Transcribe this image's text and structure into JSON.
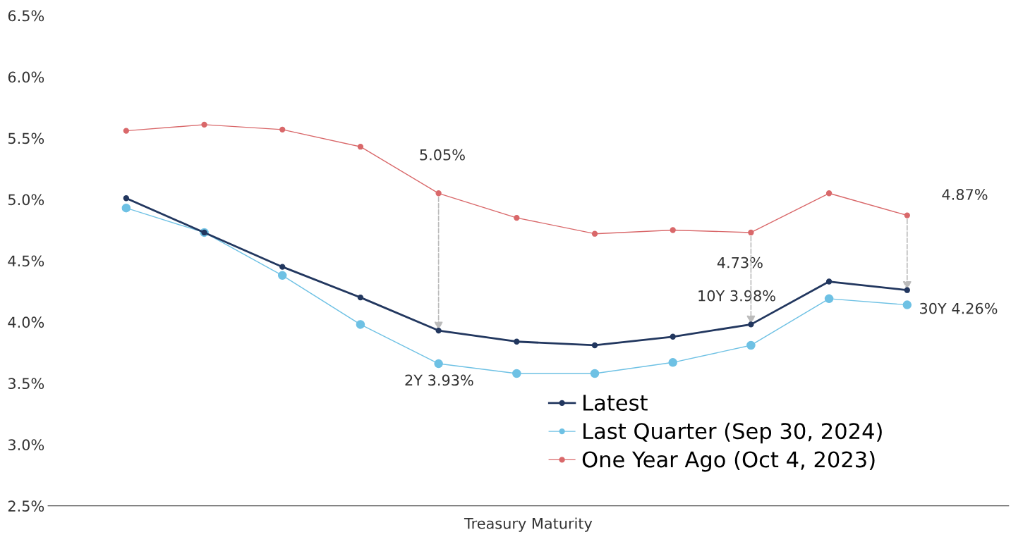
{
  "chart_data": {
    "type": "line",
    "xlabel": "Treasury Maturity",
    "categories": [
      null,
      null,
      null,
      null,
      null,
      null,
      null,
      null,
      null,
      null,
      null
    ],
    "ylim": [
      2.5,
      6.5
    ],
    "yticks": [
      {
        "value": 2.5,
        "label": "2.5%"
      },
      {
        "value": 3.0,
        "label": "3.0%"
      },
      {
        "value": 3.5,
        "label": "3.5%"
      },
      {
        "value": 4.0,
        "label": "4.0%"
      },
      {
        "value": 4.5,
        "label": "4.5%"
      },
      {
        "value": 5.0,
        "label": "5.0%"
      },
      {
        "value": 5.5,
        "label": "5.5%"
      },
      {
        "value": 6.0,
        "label": "6.0%"
      },
      {
        "value": 6.5,
        "label": "6.5%"
      }
    ],
    "tick_labels": "y",
    "grid": false,
    "legend": "bottom right",
    "marker": "circle",
    "line_style": "solid",
    "series": [
      {
        "name": "Latest",
        "color": "#22375f",
        "values": [
          5.01,
          4.73,
          4.45,
          4.2,
          3.93,
          3.84,
          3.81,
          3.88,
          3.98,
          4.33,
          4.26
        ]
      },
      {
        "name": "Last Quarter (Sep 30, 2024)",
        "color": "#6ec1e4",
        "values": [
          4.93,
          4.73,
          4.38,
          3.98,
          3.66,
          3.58,
          3.58,
          3.67,
          3.81,
          4.19,
          4.14
        ]
      },
      {
        "name": "One Year Ago (Oct 4, 2023)",
        "color": "#d9686a",
        "values": [
          5.56,
          5.61,
          5.57,
          5.43,
          5.05,
          4.85,
          4.72,
          4.75,
          4.73,
          5.05,
          4.87
        ]
      }
    ],
    "annotations": [
      "5.05%",
      "2Y 3.93%",
      "4.73%",
      "10Y 3.98%",
      "4.87%",
      "30Y 4.26%"
    ]
  }
}
